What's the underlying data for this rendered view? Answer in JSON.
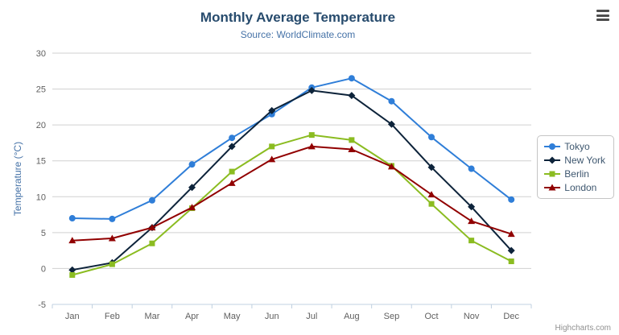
{
  "chart": {
    "title": "Monthly Average Temperature",
    "subtitle": "Source: WorldClimate.com",
    "credits": "Highcharts.com",
    "export_icon": "hamburger-menu-icon"
  },
  "colors": {
    "title": "#274b6d",
    "subtitle": "#4572a7",
    "axis_label": "#606060",
    "gridline": "#d0d0d0",
    "axis_line": "#c0d0e0",
    "legend_border": "#c5c5c5"
  },
  "chart_data": {
    "type": "line",
    "title": "Monthly Average Temperature",
    "subtitle": "Source: WorldClimate.com",
    "categories": [
      "Jan",
      "Feb",
      "Mar",
      "Apr",
      "May",
      "Jun",
      "Jul",
      "Aug",
      "Sep",
      "Oct",
      "Nov",
      "Dec"
    ],
    "series": [
      {
        "name": "Tokyo",
        "color": "#2f7ed8",
        "marker": "circle",
        "values": [
          7.0,
          6.9,
          9.5,
          14.5,
          18.2,
          21.5,
          25.2,
          26.5,
          23.3,
          18.3,
          13.9,
          9.6
        ]
      },
      {
        "name": "New York",
        "color": "#0d233a",
        "marker": "diamond",
        "values": [
          -0.2,
          0.8,
          5.7,
          11.3,
          17.0,
          22.0,
          24.8,
          24.1,
          20.1,
          14.1,
          8.6,
          2.5
        ]
      },
      {
        "name": "Berlin",
        "color": "#8bbc21",
        "marker": "square",
        "values": [
          -0.9,
          0.6,
          3.5,
          8.4,
          13.5,
          17.0,
          18.6,
          17.9,
          14.3,
          9.0,
          3.9,
          1.0
        ]
      },
      {
        "name": "London",
        "color": "#910000",
        "marker": "triangle",
        "values": [
          3.9,
          4.2,
          5.7,
          8.5,
          11.9,
          15.2,
          17.0,
          16.6,
          14.2,
          10.3,
          6.6,
          4.8
        ]
      }
    ],
    "xlabel": "",
    "ylabel": "Temperature (°C)",
    "ylim": [
      -5,
      30
    ],
    "y_tick_interval": 5,
    "grid": true,
    "legend_position": "right"
  }
}
